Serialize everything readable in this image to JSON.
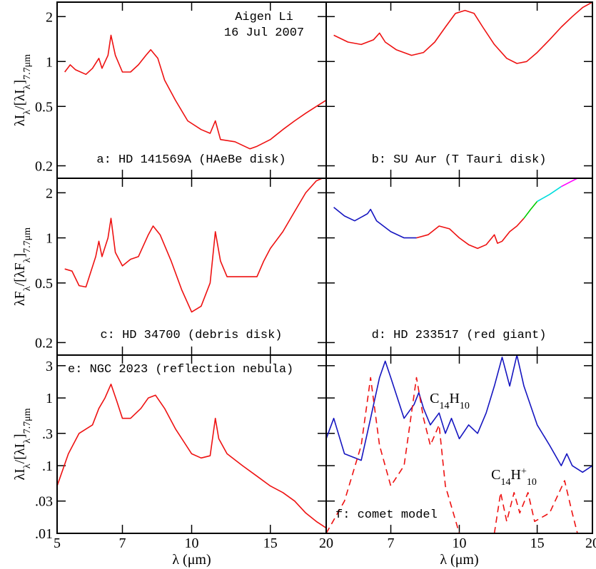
{
  "chart_data": [
    {
      "type": "line",
      "label": "a: HD 141569A (HAeBe disk)",
      "xlim": [
        5,
        20
      ],
      "ylim": [
        0.165,
        2.5
      ],
      "xticks": [
        5,
        7,
        10,
        15,
        20
      ],
      "yticks": [
        0.2,
        0.5,
        1,
        2
      ],
      "xtick_labels": false,
      "ytick_labels": true,
      "log_x": true,
      "log_y": true,
      "ylabel": [
        {
          "text": "λI"
        },
        {
          "text": "λ",
          "sub": true
        },
        {
          "text": "/[λI"
        },
        {
          "text": "λ",
          "sub": true
        },
        {
          "text": "]"
        },
        {
          "text": "7.7μm",
          "sub": true
        }
      ],
      "annotations": [
        {
          "segments": [
            {
              "text": "Aigen Li"
            }
          ]
        },
        {
          "segments": [
            {
              "text": "16 Jul 2007"
            }
          ]
        }
      ],
      "series": [
        {
          "color": "#ee1111",
          "x": [
            5.2,
            5.35,
            5.5,
            5.8,
            6.0,
            6.2,
            6.3,
            6.5,
            6.6,
            6.75,
            7.0,
            7.3,
            7.6,
            7.9,
            8.1,
            8.4,
            8.7,
            9.2,
            9.8,
            10.5,
            11.0,
            11.3,
            11.6,
            12.5,
            13.5,
            14,
            15,
            16,
            17,
            18,
            19,
            20
          ],
          "values": [
            0.85,
            0.95,
            0.88,
            0.82,
            0.9,
            1.05,
            0.9,
            1.1,
            1.5,
            1.1,
            0.85,
            0.85,
            0.95,
            1.1,
            1.2,
            1.05,
            0.75,
            0.55,
            0.4,
            0.35,
            0.33,
            0.4,
            0.3,
            0.29,
            0.26,
            0.27,
            0.3,
            0.35,
            0.4,
            0.45,
            0.5,
            0.55
          ]
        }
      ]
    },
    {
      "type": "line",
      "label": "b: SU Aur (T Tauri disk)",
      "xlim": [
        5,
        20
      ],
      "ylim": [
        0.165,
        2.5
      ],
      "xticks": [
        5,
        7,
        10,
        15,
        20
      ],
      "yticks": [
        0.2,
        0.5,
        1,
        2
      ],
      "xtick_labels": false,
      "ytick_labels": false,
      "log_x": true,
      "log_y": true,
      "series": [
        {
          "color": "#ee1111",
          "x": [
            5.2,
            5.6,
            6,
            6.4,
            6.6,
            6.8,
            7.2,
            7.8,
            8.3,
            8.8,
            9.3,
            9.8,
            10.3,
            10.8,
            11.3,
            12,
            12.8,
            13.5,
            14.2,
            15,
            16,
            17,
            18,
            19,
            20
          ],
          "values": [
            1.5,
            1.35,
            1.3,
            1.4,
            1.55,
            1.35,
            1.2,
            1.1,
            1.15,
            1.35,
            1.7,
            2.1,
            2.2,
            2.1,
            1.7,
            1.3,
            1.05,
            0.97,
            1.0,
            1.15,
            1.4,
            1.7,
            2.0,
            2.3,
            2.5
          ]
        }
      ]
    },
    {
      "type": "line",
      "label": "c: HD 34700 (debris disk)",
      "xlim": [
        5,
        20
      ],
      "ylim": [
        0.165,
        2.5
      ],
      "xticks": [
        5,
        7,
        10,
        15,
        20
      ],
      "yticks": [
        0.2,
        0.5,
        1,
        2
      ],
      "xtick_labels": false,
      "ytick_labels": true,
      "log_x": true,
      "log_y": true,
      "ylabel": [
        {
          "text": "λF"
        },
        {
          "text": "λ",
          "sub": true
        },
        {
          "text": "/[λF"
        },
        {
          "text": "λ",
          "sub": true
        },
        {
          "text": "]"
        },
        {
          "text": "7.7μm",
          "sub": true
        }
      ],
      "series": [
        {
          "color": "#ee1111",
          "x": [
            5.2,
            5.4,
            5.6,
            5.8,
            6.1,
            6.2,
            6.3,
            6.5,
            6.6,
            6.75,
            7.0,
            7.3,
            7.6,
            8.0,
            8.2,
            8.5,
            9,
            9.5,
            10,
            10.5,
            11,
            11.3,
            11.6,
            12,
            13,
            14,
            14.5,
            15,
            16,
            17,
            18,
            19,
            19.6
          ],
          "values": [
            0.62,
            0.6,
            0.48,
            0.47,
            0.75,
            0.95,
            0.75,
            1.0,
            1.35,
            0.8,
            0.65,
            0.72,
            0.75,
            1.05,
            1.2,
            1.05,
            0.7,
            0.45,
            0.32,
            0.35,
            0.5,
            1.1,
            0.7,
            0.55,
            0.55,
            0.55,
            0.7,
            0.85,
            1.1,
            1.5,
            2.0,
            2.4,
            2.5
          ]
        }
      ]
    },
    {
      "type": "line",
      "label": "d: HD 233517 (red giant)",
      "xlim": [
        5,
        20
      ],
      "ylim": [
        0.165,
        2.5
      ],
      "xticks": [
        5,
        7,
        10,
        15,
        20
      ],
      "yticks": [
        0.2,
        0.5,
        1,
        2
      ],
      "xtick_labels": false,
      "ytick_labels": false,
      "log_x": true,
      "log_y": true,
      "series": [
        {
          "color": "#1515c0",
          "x": [
            5.2,
            5.5,
            5.8,
            6.2,
            6.3,
            6.5,
            7,
            7.5,
            8
          ],
          "values": [
            1.6,
            1.4,
            1.3,
            1.45,
            1.55,
            1.3,
            1.1,
            1.0,
            1.0
          ]
        },
        {
          "color": "#ee1111",
          "x": [
            8,
            8.5,
            9,
            9.5,
            10,
            10.5,
            11,
            11.5,
            12,
            12.2,
            12.5,
            13,
            13.5,
            14
          ],
          "values": [
            1.0,
            1.05,
            1.2,
            1.15,
            1.0,
            0.9,
            0.85,
            0.9,
            1.05,
            0.92,
            0.95,
            1.1,
            1.2,
            1.35
          ]
        },
        {
          "color": "#00cc00",
          "x": [
            14,
            14.5,
            15
          ],
          "values": [
            1.35,
            1.55,
            1.75
          ]
        },
        {
          "color": "#00dddd",
          "x": [
            15,
            16,
            17
          ],
          "values": [
            1.75,
            1.95,
            2.2
          ]
        },
        {
          "color": "#ff00ff",
          "x": [
            17,
            18,
            18.5
          ],
          "values": [
            2.2,
            2.4,
            2.5
          ]
        }
      ]
    },
    {
      "type": "line",
      "label": "e: NGC 2023 (reflection nebula)",
      "xlim": [
        5,
        20
      ],
      "ylim": [
        0.01,
        4.3
      ],
      "xticks": [
        5,
        7,
        10,
        15,
        20
      ],
      "yticks": [
        {
          "value": 0.01,
          "label": ".01"
        },
        {
          "value": 0.03,
          "label": ".03"
        },
        {
          "value": 0.1,
          "label": ".1"
        },
        {
          "value": 0.3,
          "label": ".3"
        },
        1,
        3
      ],
      "xtick_labels": true,
      "ytick_labels": true,
      "log_x": true,
      "log_y": true,
      "xlabel": "λ (μm)",
      "ylabel": [
        {
          "text": "λI"
        },
        {
          "text": "λ",
          "sub": true
        },
        {
          "text": "/[λI"
        },
        {
          "text": "λ",
          "sub": true
        },
        {
          "text": "]"
        },
        {
          "text": "7.7μm",
          "sub": true
        }
      ],
      "series": [
        {
          "color": "#ee1111",
          "x": [
            5,
            5.3,
            5.6,
            6,
            6.2,
            6.4,
            6.6,
            6.8,
            7.0,
            7.3,
            7.7,
            8,
            8.3,
            8.7,
            9.2,
            10,
            10.5,
            11,
            11.3,
            11.5,
            12,
            13,
            14,
            15,
            16,
            17,
            18,
            19,
            20
          ],
          "values": [
            0.05,
            0.15,
            0.3,
            0.4,
            0.7,
            1.0,
            1.6,
            0.9,
            0.5,
            0.5,
            0.7,
            1.0,
            1.1,
            0.7,
            0.35,
            0.15,
            0.13,
            0.14,
            0.5,
            0.25,
            0.15,
            0.1,
            0.07,
            0.05,
            0.04,
            0.03,
            0.02,
            0.015,
            0.012
          ]
        }
      ]
    },
    {
      "type": "line",
      "label": "f: comet model",
      "xlim": [
        5,
        20
      ],
      "ylim": [
        0.01,
        4.3
      ],
      "xticks": [
        7,
        10,
        15,
        20
      ],
      "yticks": [
        {
          "value": 0.01,
          "label": ".01"
        },
        {
          "value": 0.03,
          "label": ".03"
        },
        {
          "value": 0.1,
          "label": ".1"
        },
        {
          "value": 0.3,
          "label": ".3"
        },
        1,
        3
      ],
      "xtick_labels": true,
      "ytick_labels": false,
      "log_x": true,
      "log_y": true,
      "xlabel": "λ (μm)",
      "annotations": [
        {
          "segments": [
            {
              "text": "C"
            },
            {
              "text": "14",
              "sub": true
            },
            {
              "text": "H"
            },
            {
              "text": "10",
              "sub": true
            }
          ]
        },
        {
          "segments": [
            {
              "text": "C"
            },
            {
              "text": "14",
              "sub": true
            },
            {
              "text": "H"
            },
            {
              "text": "+",
              "sup": true
            },
            {
              "text": "10",
              "sub": true
            }
          ]
        }
      ],
      "series": [
        {
          "color": "#1515c0",
          "dash": false,
          "x": [
            5,
            5.2,
            5.5,
            6,
            6.3,
            6.6,
            6.8,
            7.0,
            7.5,
            7.9,
            8.1,
            8.3,
            8.6,
            9,
            9.3,
            9.6,
            10,
            10.5,
            11,
            11.5,
            12,
            12.5,
            13,
            13.5,
            14,
            15,
            16,
            17,
            17.5,
            18,
            19,
            20
          ],
          "values": [
            0.25,
            0.5,
            0.15,
            0.12,
            0.5,
            2,
            3.5,
            2.0,
            0.5,
            0.8,
            1.2,
            0.7,
            0.4,
            0.6,
            0.3,
            0.5,
            0.25,
            0.4,
            0.3,
            0.6,
            1.5,
            4,
            1.5,
            4.3,
            1.5,
            0.4,
            0.2,
            0.1,
            0.15,
            0.1,
            0.08,
            0.1
          ]
        },
        {
          "color": "#ee1111",
          "dash": true,
          "x": [
            5,
            5.5,
            6,
            6.3,
            6.6,
            7,
            7.5,
            8,
            8.3,
            8.6,
            9,
            9.3,
            10,
            11,
            12,
            12.4,
            12.8,
            13.3,
            13.7,
            14.3,
            14.8,
            16,
            17.3,
            18,
            18.5
          ],
          "values": [
            0.01,
            0.03,
            0.2,
            2.0,
            0.2,
            0.05,
            0.1,
            2.0,
            0.5,
            0.2,
            0.4,
            0.05,
            0.01,
            null,
            0.01,
            0.04,
            0.015,
            0.04,
            0.02,
            0.04,
            0.015,
            0.02,
            0.06,
            0.02,
            0.01
          ]
        }
      ]
    }
  ]
}
